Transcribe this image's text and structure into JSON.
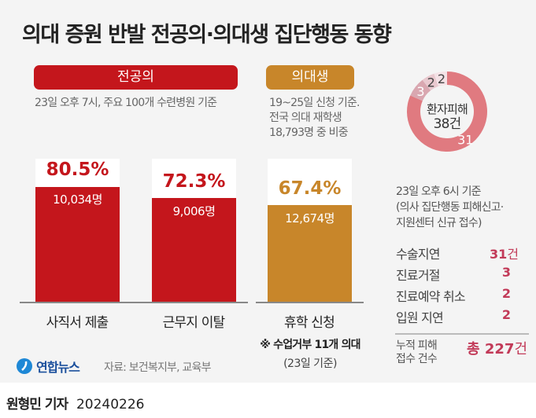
{
  "title": "의대 증원 반발 전공의·의대생 집단행동 동향",
  "residents": {
    "label": "전공의",
    "note": "23일 오후 7시, 주요 100개 수련병원 기준",
    "color": "#c4161c"
  },
  "students": {
    "label": "의대생",
    "note_lines": [
      "19~25일 신청 기준.",
      "전국 의대 재학생",
      "18,793명 중 비중"
    ],
    "color": "#c8862a",
    "footnote": "※ 수업거부 11개 의대",
    "footnote_date": "(23일 기준)"
  },
  "chart_data": [
    {
      "type": "bar",
      "categories": [
        "사직서 제출",
        "근무지 이탈",
        "휴학 신청"
      ],
      "values": [
        80.5,
        72.3,
        67.4
      ],
      "value_labels": [
        "80.5%",
        "72.3%",
        "67.4%"
      ],
      "counts": [
        "10,034명",
        "9,006명",
        "12,674명"
      ],
      "colors": [
        "#c4161c",
        "#c4161c",
        "#c8862a"
      ],
      "ylim": [
        0,
        100
      ]
    },
    {
      "type": "pie",
      "center_label": "환자피해",
      "center_value": "38건",
      "categories": [
        "수술지연",
        "진료거절",
        "진료예약 취소",
        "입원 지연"
      ],
      "values": [
        31,
        3,
        2,
        2
      ],
      "colors": [
        "#e07a80",
        "#d9a7b0",
        "#e9c9cf",
        "#f4e2e6"
      ]
    }
  ],
  "patient": {
    "note_lines": [
      "23일 오후 6시 기준",
      "(의사 집단행동 피해신고·",
      "지원센터 신규 접수)"
    ],
    "rows": [
      {
        "label": "수술지연",
        "value": "31",
        "unit": "건"
      },
      {
        "label": "진료거절",
        "value": "3",
        "unit": ""
      },
      {
        "label": "진료예약 취소",
        "value": "2",
        "unit": ""
      },
      {
        "label": "입원 지연",
        "value": "2",
        "unit": ""
      }
    ],
    "total_label_lines": [
      "누적 피해",
      "접수 건수"
    ],
    "total_prefix": "총",
    "total_value": "227",
    "total_unit": "건"
  },
  "footer": {
    "logo": "연합뉴스",
    "source": "자료: 보건복지부, 교육부",
    "byline": "원형민 기자",
    "date": "20240226"
  }
}
